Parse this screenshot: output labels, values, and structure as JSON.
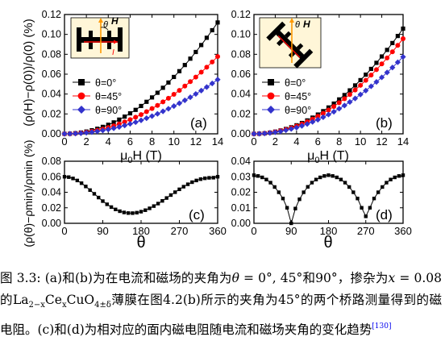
{
  "figure": {
    "panels": {
      "a": {
        "label": "(a)"
      },
      "b": {
        "label": "(b)"
      },
      "c": {
        "label": "(c)"
      },
      "d": {
        "label": "(d)"
      }
    },
    "inset_a": {
      "labels": [
        "θ",
        "H",
        "I"
      ]
    },
    "inset_b": {
      "labels": [
        "θ",
        "H"
      ]
    },
    "top_ylabel": "(ρ(H)−ρ(0))/ρ(0) (%)",
    "bottom_ylabel": "(ρ(θ)−ρmin)/ρmin (%)",
    "top_xlabel": "μ0H (T)",
    "bottom_xlabel": "θ",
    "colors": {
      "black": "#000000",
      "red": "#ff0000",
      "blue": "#3333cc"
    }
  },
  "chart_data": [
    {
      "type": "line",
      "panel": "a",
      "x": [
        0,
        0.5,
        1,
        1.5,
        2,
        2.5,
        3,
        3.5,
        4,
        4.5,
        5,
        5.5,
        6,
        6.5,
        7,
        7.5,
        8,
        8.5,
        9,
        9.5,
        10,
        10.5,
        11,
        11.5,
        12,
        12.5,
        13,
        13.5,
        14
      ],
      "series": [
        {
          "name": "θ=0°",
          "values": [
            0,
            0.0001,
            0.0006,
            0.0013,
            0.0023,
            0.0036,
            0.0051,
            0.007,
            0.0091,
            0.0115,
            0.0143,
            0.0173,
            0.0206,
            0.0241,
            0.028,
            0.0322,
            0.0366,
            0.0413,
            0.0463,
            0.0516,
            0.0572,
            0.063,
            0.0692,
            0.0756,
            0.0823,
            0.0893,
            0.0966,
            0.1042,
            0.112
          ]
        },
        {
          "name": "θ=45°",
          "values": [
            0,
            0.0001,
            0.0004,
            0.0009,
            0.0016,
            0.0025,
            0.0036,
            0.0048,
            0.0063,
            0.008,
            0.0099,
            0.012,
            0.0143,
            0.0167,
            0.0194,
            0.0223,
            0.0254,
            0.0286,
            0.0321,
            0.0358,
            0.0397,
            0.0437,
            0.048,
            0.0525,
            0.0571,
            0.062,
            0.067,
            0.0723,
            0.0777
          ]
        },
        {
          "name": "θ=90°",
          "values": [
            0,
            0.0001,
            0.0003,
            0.0006,
            0.0011,
            0.0017,
            0.0025,
            0.0034,
            0.0044,
            0.0056,
            0.0069,
            0.0084,
            0.01,
            0.0117,
            0.0136,
            0.0157,
            0.0178,
            0.0201,
            0.0226,
            0.0252,
            0.0279,
            0.0307,
            0.0337,
            0.0368,
            0.0401,
            0.0435,
            0.047,
            0.0507,
            0.0545
          ]
        }
      ],
      "xlim": [
        0,
        14
      ],
      "ylim": [
        0,
        0.12
      ],
      "xticks": [
        0,
        2,
        4,
        6,
        8,
        10,
        12,
        14
      ],
      "yticks": [
        0.0,
        0.02,
        0.04,
        0.06,
        0.08,
        0.1,
        0.12
      ],
      "legend": [
        "θ=0°",
        "θ=45°",
        "θ=90°"
      ]
    },
    {
      "type": "line",
      "panel": "b",
      "x": [
        0,
        0.5,
        1,
        1.5,
        2,
        2.5,
        3,
        3.5,
        4,
        4.5,
        5,
        5.5,
        6,
        6.5,
        7,
        7.5,
        8,
        8.5,
        9,
        9.5,
        10,
        10.5,
        11,
        11.5,
        12,
        12.5,
        13,
        13.5,
        14
      ],
      "series": [
        {
          "name": "θ=0°",
          "values": [
            0,
            0.0001,
            0.0005,
            0.0012,
            0.0022,
            0.0034,
            0.0049,
            0.0066,
            0.0086,
            0.0109,
            0.0135,
            0.0163,
            0.0194,
            0.0228,
            0.0265,
            0.0304,
            0.0346,
            0.039,
            0.0437,
            0.0487,
            0.054,
            0.0595,
            0.0653,
            0.0714,
            0.0778,
            0.0844,
            0.0913,
            0.0984,
            0.1058
          ]
        },
        {
          "name": "θ=45°",
          "values": [
            0,
            0.0001,
            0.0005,
            0.0011,
            0.002,
            0.0031,
            0.0044,
            0.006,
            0.0078,
            0.0099,
            0.0122,
            0.0148,
            0.0176,
            0.0206,
            0.0239,
            0.0275,
            0.0313,
            0.0353,
            0.0395,
            0.0441,
            0.0488,
            0.0538,
            0.0591,
            0.0646,
            0.0703,
            0.0763,
            0.0825,
            0.089,
            0.0957
          ]
        },
        {
          "name": "θ=90°",
          "values": [
            0,
            0.0001,
            0.0004,
            0.0009,
            0.0016,
            0.0025,
            0.0036,
            0.0049,
            0.0063,
            0.008,
            0.0099,
            0.012,
            0.0142,
            0.0167,
            0.0194,
            0.0222,
            0.0253,
            0.0285,
            0.032,
            0.0356,
            0.0395,
            0.0435,
            0.0478,
            0.0522,
            0.0568,
            0.0617,
            0.0667,
            0.072,
            0.0774
          ]
        }
      ],
      "xlim": [
        0,
        14
      ],
      "ylim": [
        0,
        0.12
      ],
      "xticks": [
        0,
        2,
        4,
        6,
        8,
        10,
        12,
        14
      ],
      "yticks": [
        0.0,
        0.02,
        0.04,
        0.06,
        0.08,
        0.1,
        0.12
      ],
      "legend": [
        "θ=0°",
        "θ=45°",
        "θ=90°"
      ]
    },
    {
      "type": "line",
      "panel": "c",
      "x": [
        0,
        10,
        20,
        30,
        40,
        50,
        60,
        70,
        80,
        90,
        100,
        110,
        120,
        130,
        140,
        150,
        160,
        170,
        180,
        190,
        200,
        210,
        220,
        230,
        240,
        250,
        260,
        270,
        280,
        290,
        300,
        310,
        320,
        330,
        340,
        350,
        360
      ],
      "series": [
        {
          "name": "",
          "values": [
            0.06,
            0.0595,
            0.0578,
            0.0552,
            0.0517,
            0.0475,
            0.0428,
            0.038,
            0.0332,
            0.0286,
            0.0245,
            0.0209,
            0.0179,
            0.0156,
            0.014,
            0.0132,
            0.0131,
            0.0137,
            0.015,
            0.0169,
            0.0193,
            0.0222,
            0.0254,
            0.0289,
            0.0326,
            0.0364,
            0.0401,
            0.0438,
            0.0472,
            0.0503,
            0.053,
            0.0552,
            0.0569,
            0.058,
            0.0586,
            0.0588,
            0.06
          ]
        }
      ],
      "xlim": [
        0,
        360
      ],
      "ylim": [
        0,
        0.08
      ],
      "xticks": [
        0,
        90,
        180,
        270,
        360
      ],
      "yticks": [
        0.0,
        0.02,
        0.04,
        0.06,
        0.08
      ]
    },
    {
      "type": "line",
      "panel": "d",
      "x": [
        0,
        10,
        20,
        30,
        40,
        50,
        60,
        70,
        80,
        90,
        100,
        110,
        120,
        130,
        140,
        150,
        160,
        170,
        180,
        190,
        200,
        210,
        220,
        230,
        240,
        250,
        260,
        270,
        280,
        290,
        300,
        310,
        320,
        330,
        340,
        350,
        360
      ],
      "series": [
        {
          "name": "",
          "values": [
            0.031,
            0.0305,
            0.0296,
            0.0282,
            0.0262,
            0.0234,
            0.02,
            0.016,
            0.01,
            0.0,
            0.0095,
            0.0155,
            0.02,
            0.0235,
            0.0262,
            0.0282,
            0.0296,
            0.0305,
            0.031,
            0.0305,
            0.0296,
            0.0282,
            0.0262,
            0.0234,
            0.02,
            0.016,
            0.01,
            0.0045,
            0.01,
            0.016,
            0.02,
            0.0234,
            0.0262,
            0.0282,
            0.0296,
            0.0305,
            0.031
          ]
        }
      ],
      "xlim": [
        0,
        360
      ],
      "ylim": [
        0,
        0.04
      ],
      "xticks": [
        0,
        90,
        180,
        270,
        360
      ],
      "yticks": [
        0.0,
        0.01,
        0.02,
        0.03,
        0.04
      ]
    }
  ],
  "caption": {
    "lead": "图 3.3: (a)和(b)为在电流和磁场的夹角为",
    "theta_eq": "θ = ",
    "angles": "0°, 45°和90°",
    "mid": "，掺杂为",
    "x_eq": "x = ",
    "x_val": "0.08的La",
    "sub1": "2−x",
    "ce": "Ce",
    "sub2": "x",
    "cuo": "CuO",
    "sub3": "4±δ",
    "rest": "薄膜在图4.2(b)所示的夹角为45°的两个桥路测量得到的磁电阻。(c)和(d)为相对应的面内磁电阻随电流和磁场夹角的变化趋势",
    "ref": "[130]"
  }
}
